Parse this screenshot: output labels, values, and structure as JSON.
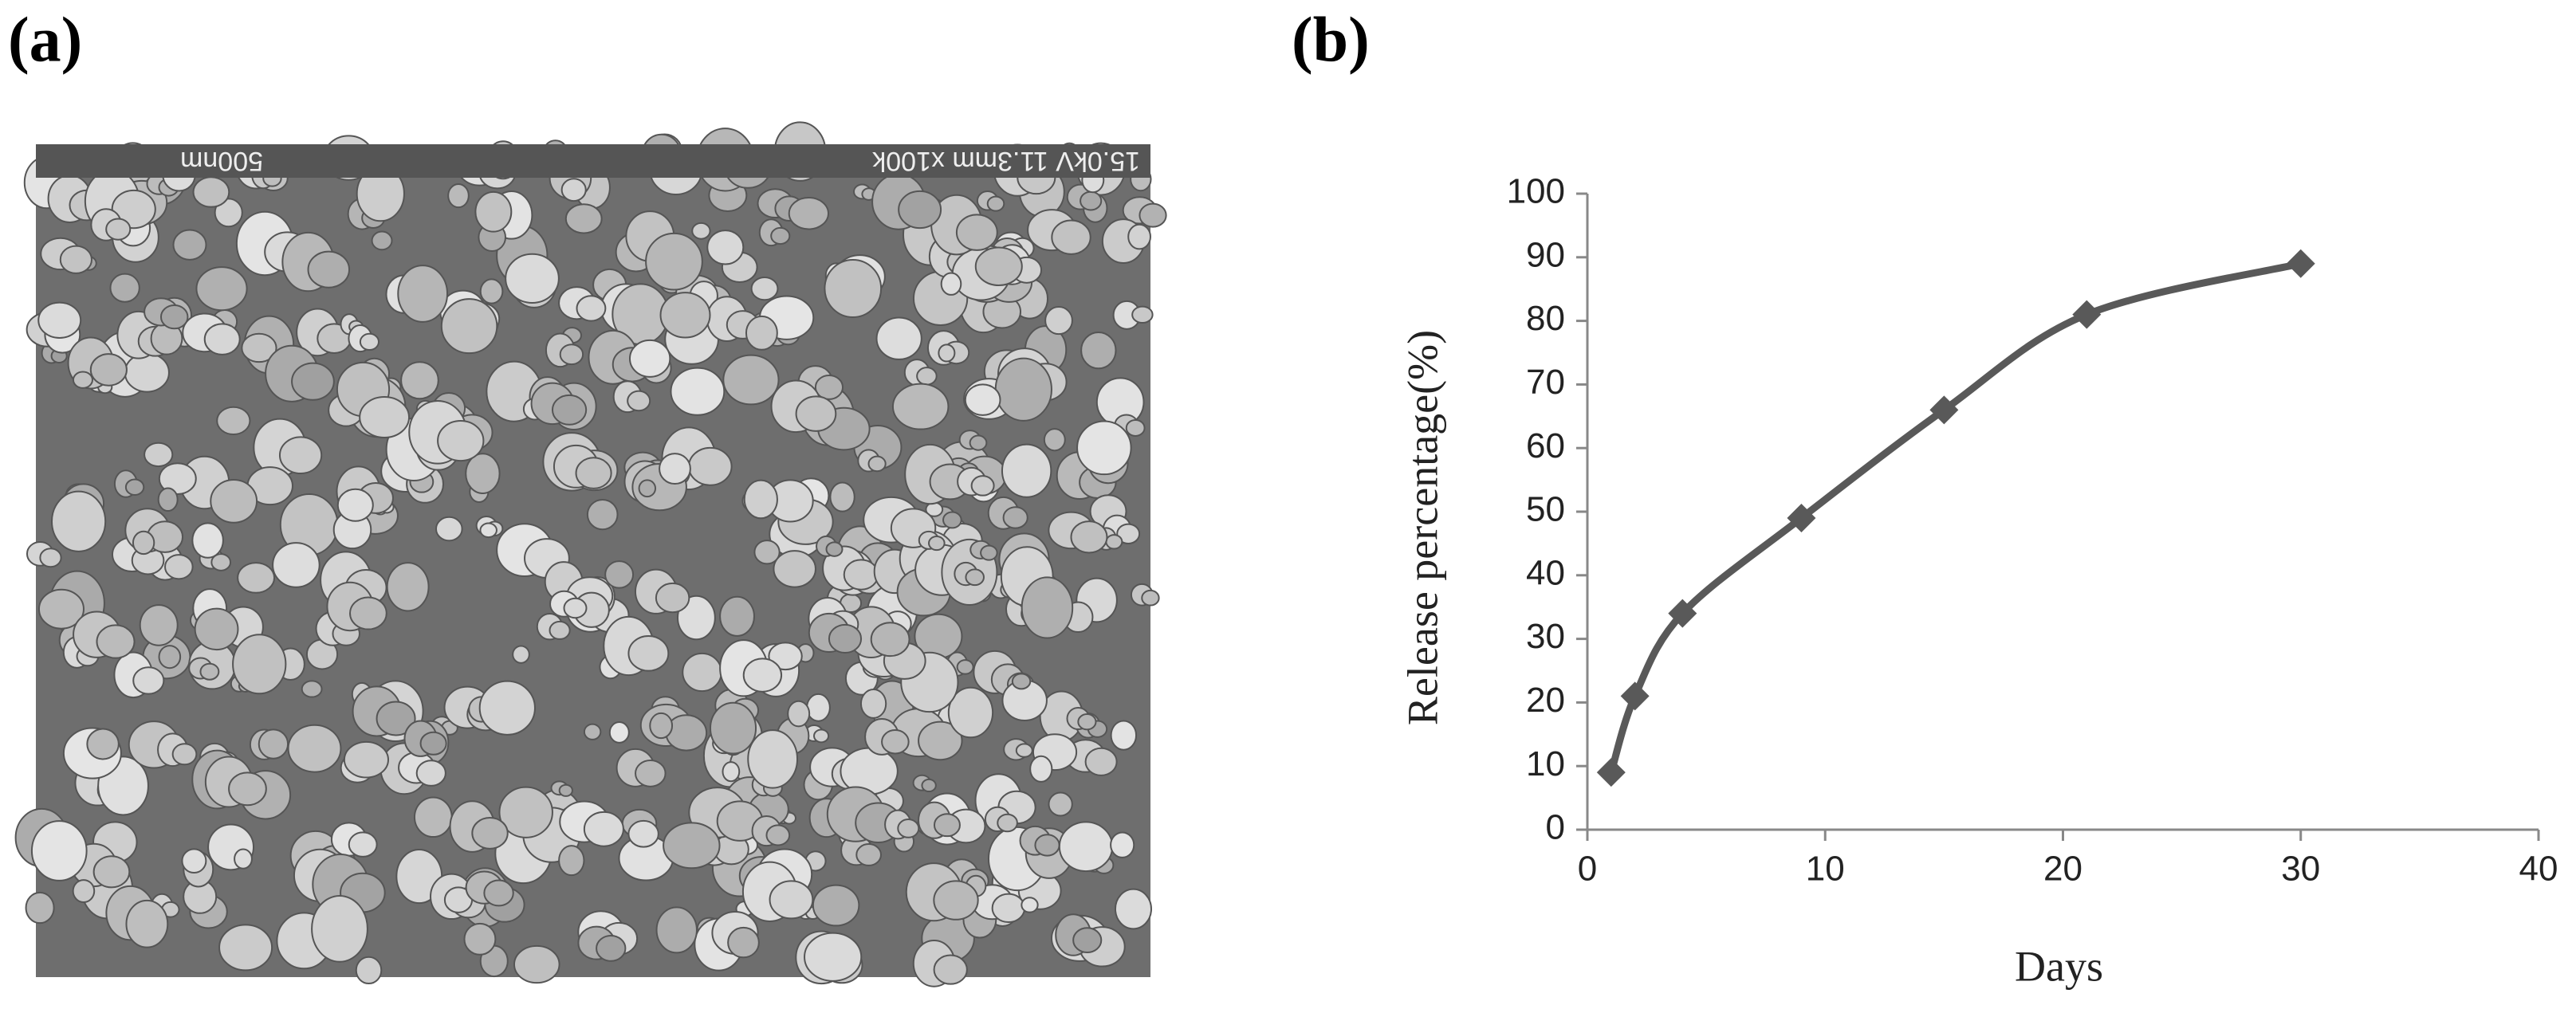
{
  "panel_a": {
    "label": "(a)",
    "micrograph_info": "15.0kV 11.3mm x100k",
    "scale_bar": "500nm"
  },
  "chart_data": {
    "type": "line",
    "panel_label": "(b)",
    "x_label": "Days",
    "y_label": "Release percentage(%)",
    "x": [
      1,
      2,
      4,
      9,
      15,
      21,
      30
    ],
    "series": [
      {
        "color": "#595959",
        "values": [
          9,
          21,
          34,
          49,
          66,
          81,
          89
        ]
      }
    ],
    "xlim": [
      0,
      40
    ],
    "xticks": [
      0,
      10,
      20,
      30,
      40
    ],
    "ylim": [
      0,
      100
    ],
    "yticks": [
      0,
      10,
      20,
      30,
      40,
      50,
      60,
      70,
      80,
      90,
      100
    ],
    "marker": "diamond",
    "smooth": true,
    "grid": false
  }
}
